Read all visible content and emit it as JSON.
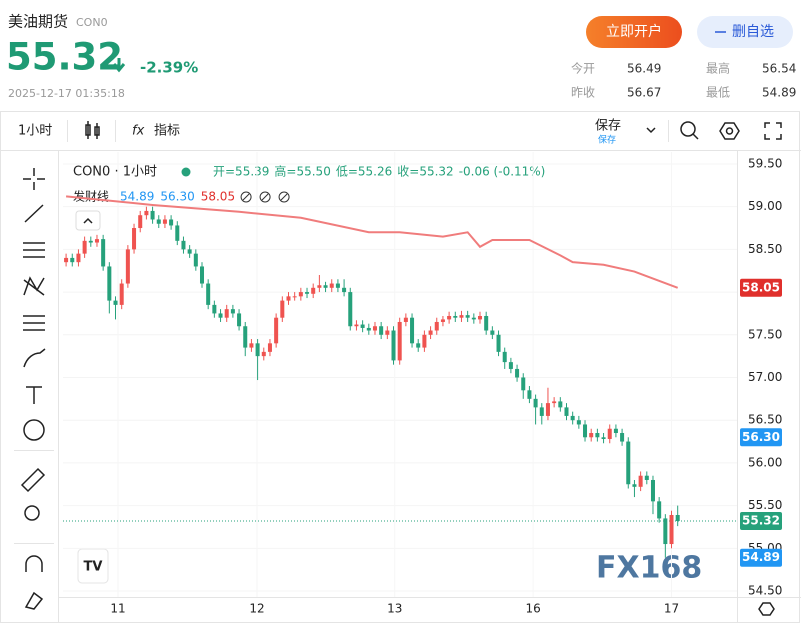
{
  "header": {
    "name": "美油期货",
    "code": "CON0",
    "price": "55.32",
    "change": "-2.39%",
    "time": "2025-12-17 01:35:18",
    "stats": [
      {
        "label": "今开",
        "value": "56.49"
      },
      {
        "label": "最高",
        "value": "56.54"
      },
      {
        "label": "昨收",
        "value": "56.67"
      },
      {
        "label": "最低",
        "value": "54.89"
      }
    ],
    "buttons": {
      "open": "立即开户",
      "remove": "删自选"
    }
  },
  "toolbar": {
    "interval": "1小时",
    "indicators": "指标",
    "save": "保存",
    "save_sub": "保存"
  },
  "watermark": "FX168",
  "chart_data": {
    "type": "candlestick",
    "legend": {
      "symbol": "CON0 · 1小时",
      "ohlc": [
        "开=55.39",
        "高=55.50",
        "低=55.26",
        "收=55.32"
      ],
      "change": "-0.06 (-0.11%)",
      "indicator_values": [
        {
          "label": "54.89",
          "color": "#2196f3"
        },
        {
          "label": "56.30",
          "color": "#2196f3"
        },
        {
          "label": "58.05",
          "color": "#e0302c"
        }
      ]
    },
    "up_color": "#ef5350",
    "down_color": "#26a17b",
    "open": [
      58.35,
      58.4,
      58.35,
      58.45,
      58.6,
      58.58,
      58.62,
      58.3,
      57.9,
      57.85,
      58.1,
      58.5,
      58.75,
      58.9,
      58.95,
      58.85,
      58.8,
      58.85,
      58.78,
      58.6,
      58.5,
      58.45,
      58.3,
      58.1,
      57.85,
      57.75,
      57.7,
      57.8,
      57.75,
      57.6,
      57.35,
      57.4,
      57.25,
      57.3,
      57.4,
      57.7,
      57.9,
      57.95,
      57.95,
      58.0,
      57.98,
      58.05,
      58.08,
      58.05,
      58.1,
      58.05,
      58.0,
      57.6,
      57.62,
      57.58,
      57.55,
      57.6,
      57.5,
      57.55,
      57.2,
      57.65,
      57.7,
      57.4,
      57.35,
      57.5,
      57.55,
      57.65,
      57.68,
      57.72,
      57.7,
      57.73,
      57.7,
      57.68,
      57.72,
      57.55,
      57.5,
      57.3,
      57.18,
      57.1,
      57.0,
      56.85,
      56.75,
      56.65,
      56.55,
      56.7,
      56.72,
      56.65,
      56.55,
      56.5,
      56.45,
      56.3,
      56.35,
      56.3,
      56.28,
      56.4,
      56.35,
      56.25,
      55.75,
      55.72,
      55.85,
      55.8,
      55.55,
      55.35,
      55.05,
      55.39
    ],
    "high": [
      58.45,
      58.45,
      58.5,
      58.65,
      58.65,
      58.67,
      58.67,
      58.35,
      57.95,
      58.15,
      58.55,
      58.8,
      58.95,
      59.0,
      59.0,
      58.9,
      58.9,
      58.9,
      58.83,
      58.65,
      58.55,
      58.5,
      58.35,
      58.15,
      57.9,
      57.8,
      57.85,
      57.85,
      57.8,
      57.65,
      57.45,
      57.45,
      57.35,
      57.45,
      57.75,
      57.95,
      58.0,
      58.0,
      58.05,
      58.05,
      58.1,
      58.2,
      58.12,
      58.15,
      58.15,
      58.15,
      58.05,
      57.67,
      57.67,
      57.63,
      57.65,
      57.65,
      57.6,
      57.6,
      57.7,
      57.75,
      57.75,
      57.45,
      57.55,
      57.6,
      57.7,
      57.72,
      57.77,
      57.77,
      57.78,
      57.78,
      57.75,
      57.77,
      57.77,
      57.6,
      57.55,
      57.35,
      57.23,
      57.15,
      57.05,
      56.9,
      56.8,
      56.7,
      56.88,
      56.77,
      56.77,
      56.7,
      56.6,
      56.55,
      56.5,
      56.4,
      56.4,
      56.35,
      56.45,
      56.45,
      56.4,
      56.3,
      55.8,
      55.9,
      55.9,
      55.85,
      55.6,
      55.4,
      55.44,
      55.5
    ],
    "low": [
      58.3,
      58.3,
      58.3,
      58.4,
      58.53,
      58.53,
      58.25,
      57.75,
      57.68,
      57.8,
      58.05,
      58.45,
      58.7,
      58.85,
      58.8,
      58.75,
      58.75,
      58.73,
      58.55,
      58.45,
      58.4,
      58.25,
      58.05,
      57.8,
      57.7,
      57.65,
      57.65,
      57.7,
      57.55,
      57.25,
      57.3,
      56.97,
      57.2,
      57.25,
      57.35,
      57.65,
      57.85,
      57.9,
      57.9,
      57.93,
      57.93,
      58.0,
      58.0,
      58.0,
      58.0,
      57.95,
      57.55,
      57.55,
      57.53,
      57.5,
      57.5,
      57.45,
      57.45,
      57.15,
      57.15,
      57.6,
      57.35,
      57.3,
      57.3,
      57.45,
      57.5,
      57.6,
      57.63,
      57.65,
      57.65,
      57.65,
      57.63,
      57.63,
      57.5,
      57.45,
      57.25,
      57.1,
      57.05,
      56.95,
      56.75,
      56.7,
      56.45,
      56.45,
      56.5,
      56.65,
      56.6,
      56.5,
      56.45,
      56.4,
      56.25,
      56.25,
      56.25,
      56.23,
      56.23,
      56.3,
      56.2,
      55.7,
      55.6,
      55.67,
      55.75,
      55.4,
      55.3,
      54.89,
      55.0,
      55.26
    ],
    "close": [
      58.4,
      58.35,
      58.45,
      58.6,
      58.58,
      58.62,
      58.3,
      57.9,
      57.85,
      58.1,
      58.5,
      58.75,
      58.9,
      58.95,
      58.85,
      58.8,
      58.85,
      58.78,
      58.6,
      58.5,
      58.45,
      58.3,
      58.1,
      57.85,
      57.75,
      57.7,
      57.8,
      57.75,
      57.6,
      57.35,
      57.4,
      57.25,
      57.3,
      57.4,
      57.7,
      57.9,
      57.95,
      57.95,
      58.0,
      57.98,
      58.05,
      58.08,
      58.05,
      58.1,
      58.05,
      58.0,
      57.6,
      57.62,
      57.58,
      57.55,
      57.6,
      57.5,
      57.55,
      57.2,
      57.65,
      57.7,
      57.4,
      57.35,
      57.5,
      57.55,
      57.65,
      57.68,
      57.72,
      57.7,
      57.73,
      57.7,
      57.68,
      57.72,
      57.55,
      57.5,
      57.3,
      57.18,
      57.1,
      57.0,
      56.85,
      56.75,
      56.65,
      56.55,
      56.7,
      56.72,
      56.65,
      56.55,
      56.5,
      56.45,
      56.3,
      56.35,
      56.3,
      56.28,
      56.4,
      56.35,
      56.25,
      55.75,
      55.72,
      55.85,
      55.8,
      55.55,
      55.35,
      55.05,
      55.39,
      55.32
    ],
    "series": [
      {
        "name": "发财线",
        "color": "#f07c7c",
        "x": [
          0,
          14,
          28,
          38,
          49,
          54,
          61,
          65,
          67,
          69,
          75,
          80,
          82,
          87,
          92,
          99
        ],
        "values": [
          59.12,
          59.02,
          58.94,
          58.87,
          58.7,
          58.7,
          58.65,
          58.7,
          58.53,
          58.61,
          58.61,
          58.43,
          58.35,
          58.32,
          58.24,
          58.05
        ]
      }
    ],
    "xlim": [
      -0.5,
      108.6
    ],
    "xticks": [
      {
        "value": 8.4,
        "label": "11"
      },
      {
        "value": 30.9,
        "label": "12"
      },
      {
        "value": 53.2,
        "label": "13"
      },
      {
        "value": 75.6,
        "label": "16"
      },
      {
        "value": 98,
        "label": "17"
      }
    ],
    "ylim": [
      54.43,
      59.64
    ],
    "yticks": [
      {
        "value": 54.5,
        "label": "54.50"
      },
      {
        "value": 55,
        "label": "55.00"
      },
      {
        "value": 55.5,
        "label": "55.50"
      },
      {
        "value": 56,
        "label": "56.00"
      },
      {
        "value": 56.5,
        "label": "56.50"
      },
      {
        "value": 57,
        "label": "57.00"
      },
      {
        "value": 57.5,
        "label": "57.50"
      },
      {
        "value": 58,
        "label": "58.00"
      },
      {
        "value": 58.5,
        "label": "58.50"
      },
      {
        "value": 59,
        "label": "59.00"
      },
      {
        "value": 59.5,
        "label": "59.50"
      }
    ],
    "grid": true,
    "last_price": 55.32,
    "price_tags": [
      {
        "value": 58.05,
        "label": "58.05",
        "color": "#e0302c"
      },
      {
        "value": 56.3,
        "label": "56.30",
        "color": "#2196f3"
      },
      {
        "value": 55.32,
        "label": "55.32",
        "color": "#26a17b"
      },
      {
        "value": 54.89,
        "label": "54.89",
        "color": "#2196f3"
      }
    ]
  }
}
